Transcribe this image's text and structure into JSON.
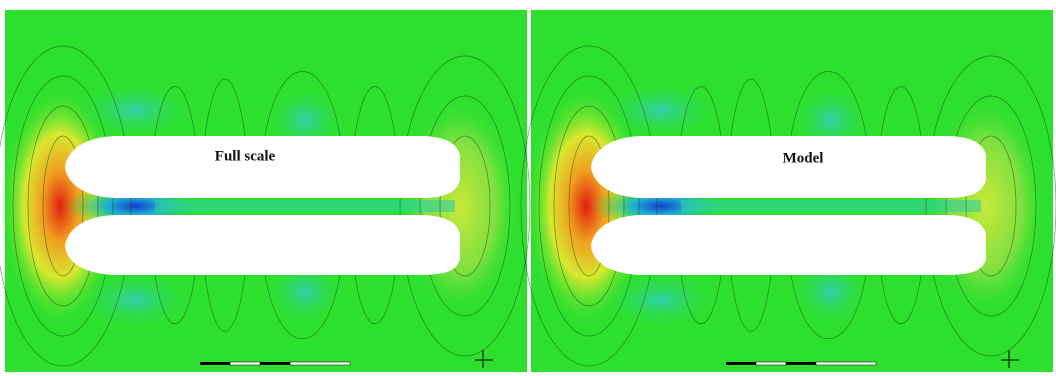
{
  "panels": [
    {
      "label": "Full scale"
    },
    {
      "label": "Model"
    }
  ]
}
